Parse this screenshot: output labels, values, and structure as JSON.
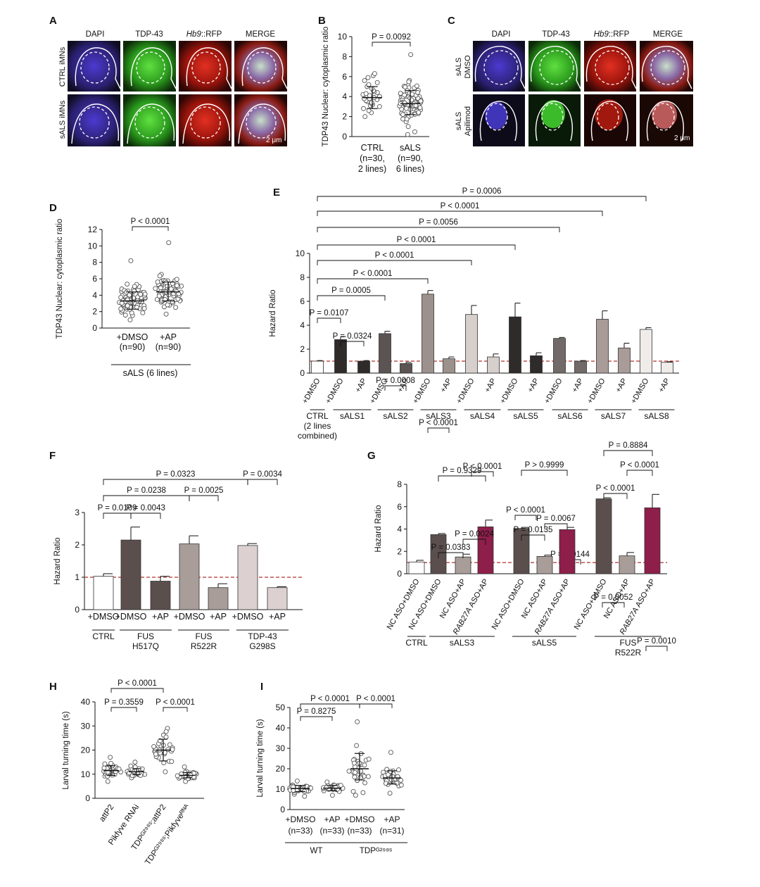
{
  "panel_A": {
    "letter": "A",
    "channels": [
      "DAPI",
      "TDP-43",
      "Hb9::RFP",
      "MERGE"
    ],
    "rows": [
      "CTRL iMNs",
      "sALS iMNs"
    ],
    "scale_bar": "2 μm"
  },
  "panel_C": {
    "letter": "C",
    "channels": [
      "DAPI",
      "TDP-43",
      "Hb9::RFP",
      "MERGE"
    ],
    "rows": [
      "sALS DMSO",
      "sALS Apilimod"
    ],
    "scale_bar": "2 μm"
  },
  "colors": {
    "dapi": "#3b2fa0",
    "tdp43": "#38b82b",
    "rfp": "#c21d14",
    "sals_bar": "#5a4e4e",
    "ap_bar": "#a79b97",
    "rab27a_bar": "#8e1e4a",
    "dashed_line": "#b2322f"
  },
  "chart_data": [
    {
      "id": "B",
      "letter": "B",
      "type": "scatter",
      "ylabel": "TDP43 Nuclear: cytoplasmic ratio",
      "ylim": [
        0,
        10
      ],
      "yticks": [
        0,
        2,
        4,
        6,
        8,
        10
      ],
      "groups": [
        {
          "label": [
            "CTRL",
            "(n=30,",
            "2 lines)"
          ],
          "n": 30,
          "mean": 3.9,
          "sd_lo": 2.8,
          "sd_hi": 5.0,
          "values": [
            2.0,
            2.4,
            2.6,
            2.8,
            3.0,
            3.1,
            3.2,
            3.3,
            3.4,
            3.5,
            3.6,
            3.7,
            3.8,
            3.8,
            3.9,
            4.0,
            4.1,
            4.2,
            4.3,
            4.4,
            4.5,
            4.6,
            4.8,
            5.0,
            5.2,
            5.4,
            5.6,
            5.9,
            6.1,
            6.3
          ]
        },
        {
          "label": [
            "sALS",
            "(n=90,",
            "6 lines)"
          ],
          "n": 90,
          "mean": 3.3,
          "sd_lo": 2.2,
          "sd_hi": 4.6,
          "values_range": [
            0.2,
            8.2
          ]
        }
      ],
      "comparisons": [
        {
          "text": "P = 0.0092",
          "from": 0,
          "to": 1
        }
      ]
    },
    {
      "id": "D",
      "letter": "D",
      "type": "scatter",
      "ylabel": "TDP43 Nuclear: cytoplasmic ratio",
      "ylim": [
        0,
        12
      ],
      "yticks": [
        0,
        2,
        4,
        6,
        8,
        10,
        12
      ],
      "groups": [
        {
          "label": [
            "+DMSO",
            "(n=90)"
          ],
          "n": 90,
          "mean": 3.3,
          "sd_lo": 2.3,
          "sd_hi": 4.4,
          "values_range": [
            1.0,
            8.2
          ]
        },
        {
          "label": [
            "+AP",
            "(n=90)"
          ],
          "n": 90,
          "mean": 4.4,
          "sd_lo": 3.3,
          "sd_hi": 5.6,
          "values_range": [
            1.7,
            10.4
          ]
        }
      ],
      "group_caption": "sALS (6 lines)",
      "comparisons": [
        {
          "text": "P < 0.0001",
          "from": 0,
          "to": 1
        }
      ]
    },
    {
      "id": "E",
      "letter": "E",
      "type": "bar",
      "ylabel": "Hazard Ratio",
      "ylim": [
        0,
        10
      ],
      "yticks": [
        0,
        2,
        4,
        6,
        8,
        10
      ],
      "reference_line": 1,
      "categories": [
        "+DMSO",
        "+DMSO",
        "+AP",
        "+DMSO",
        "+AP",
        "+DMSO",
        "+AP",
        "+DMSO",
        "+AP",
        "+DMSO",
        "+AP",
        "+DMSO",
        "+AP",
        "+DMSO",
        "+AP",
        "+DMSO",
        "+AP"
      ],
      "values": [
        1.0,
        2.8,
        1.0,
        3.3,
        0.8,
        6.6,
        1.2,
        4.9,
        1.35,
        4.7,
        1.45,
        2.9,
        1.0,
        4.5,
        2.1,
        3.65,
        0.9
      ],
      "errors": [
        0.05,
        0.25,
        0.05,
        0.2,
        0.1,
        0.3,
        0.15,
        0.75,
        0.25,
        1.15,
        0.25,
        0.08,
        0.05,
        0.7,
        0.4,
        0.15,
        0.05
      ],
      "bar_colors": [
        "#ffffff",
        "#2e2b2a",
        "#2e2b2a",
        "#5b5453",
        "#5b5453",
        "#9c918c",
        "#9c918c",
        "#d6cfcc",
        "#d6cfcc",
        "#2e2b2a",
        "#2e2b2a",
        "#726a68",
        "#726a68",
        "#a89b98",
        "#a89b98",
        "#efecea",
        "#efecea"
      ],
      "groups": [
        {
          "label": [
            "CTRL",
            "(2 lines",
            "combined)"
          ],
          "bars": [
            0,
            0
          ]
        },
        {
          "label": [
            "sALS1"
          ],
          "bars": [
            1,
            2
          ]
        },
        {
          "label": [
            "sALS2"
          ],
          "bars": [
            3,
            4
          ]
        },
        {
          "label": [
            "sALS3"
          ],
          "bars": [
            5,
            6
          ]
        },
        {
          "label": [
            "sALS4"
          ],
          "bars": [
            7,
            8
          ]
        },
        {
          "label": [
            "sALS5"
          ],
          "bars": [
            9,
            10
          ]
        },
        {
          "label": [
            "sALS6"
          ],
          "bars": [
            11,
            12
          ]
        },
        {
          "label": [
            "sALS7"
          ],
          "bars": [
            13,
            14
          ]
        },
        {
          "label": [
            "sALS8"
          ],
          "bars": [
            15,
            16
          ]
        }
      ],
      "comparisons": [
        {
          "text": "P = 0.0107",
          "from": 0,
          "to": 1
        },
        {
          "text": "P = 0.0324",
          "from": 1,
          "to": 2
        },
        {
          "text": "P = 0.0005",
          "from": 0,
          "to": 3
        },
        {
          "text": "P = 0.0008",
          "from": 3,
          "to": 4
        },
        {
          "text": "P < 0.0001",
          "from": 0,
          "to": 5
        },
        {
          "text": "P < 0.0001",
          "from": 5,
          "to": 6
        },
        {
          "text": "P < 0.0001",
          "from": 0,
          "to": 7
        },
        {
          "text": "P < 0.0001",
          "from": 7,
          "to": 8
        },
        {
          "text": "P < 0.0001",
          "from": 0,
          "to": 9
        },
        {
          "text": "P < 0.0001",
          "from": 9,
          "to": 10
        },
        {
          "text": "P = 0.0056",
          "from": 0,
          "to": 11
        },
        {
          "text": "P = 0.0144",
          "from": 11,
          "to": 12
        },
        {
          "text": "P < 0.0001",
          "from": 0,
          "to": 13
        },
        {
          "text": "P = 0.0052",
          "from": 13,
          "to": 14
        },
        {
          "text": "P = 0.0006",
          "from": 0,
          "to": 15
        },
        {
          "text": "P = 0.0010",
          "from": 15,
          "to": 16
        }
      ]
    },
    {
      "id": "F",
      "letter": "F",
      "type": "bar",
      "ylabel": "Hazard Ratio",
      "ylim": [
        0,
        3
      ],
      "yticks": [
        0,
        1,
        2,
        3
      ],
      "reference_line": 1,
      "categories": [
        "+DMSO",
        "+DMSO",
        "+AP",
        "+DMSO",
        "+AP",
        "+DMSO",
        "+AP"
      ],
      "values": [
        1.03,
        2.15,
        0.88,
        2.03,
        0.68,
        1.98,
        0.68
      ],
      "errors": [
        0.08,
        0.4,
        0.15,
        0.25,
        0.12,
        0.06,
        0.03
      ],
      "bar_colors": [
        "#ffffff",
        "#5b4f4e",
        "#5b4f4e",
        "#a89d98",
        "#a89d98",
        "#dcd0d0",
        "#dcd0d0"
      ],
      "groups": [
        {
          "label": [
            "CTRL"
          ],
          "bars": [
            0,
            0
          ]
        },
        {
          "label": [
            "FUS",
            "H517Q"
          ],
          "bars": [
            1,
            2
          ]
        },
        {
          "label": [
            "FUS",
            "R522R"
          ],
          "bars": [
            3,
            4
          ]
        },
        {
          "label": [
            "TDP-43",
            "G298S"
          ],
          "bars": [
            5,
            6
          ]
        }
      ],
      "comparisons": [
        {
          "text": "P = 0.0109",
          "from": 0,
          "to": 1
        },
        {
          "text": "P = 0.0043",
          "from": 1,
          "to": 2
        },
        {
          "text": "P = 0.0238",
          "from": 0,
          "to": 3
        },
        {
          "text": "P = 0.0025",
          "from": 3,
          "to": 4
        },
        {
          "text": "P = 0.0323",
          "from": 0,
          "to": 5
        },
        {
          "text": "P = 0.0034",
          "from": 5,
          "to": 6
        }
      ]
    },
    {
      "id": "G",
      "letter": "G",
      "type": "bar",
      "ylabel": "Hazard Ratio",
      "ylim": [
        0,
        8
      ],
      "yticks": [
        0,
        2,
        4,
        6,
        8
      ],
      "reference_line": 1,
      "categories": [
        "NC ASO+DMSO",
        "NC ASO+DMSO",
        "NC ASO+AP",
        "RAB27A ASO+AP",
        "NC ASO+DMSO",
        "NC ASO+AP",
        "RAB27A ASO+AP",
        "NC ASO+DMSO",
        "NC ASO+AP",
        "RAB27A ASO+AP"
      ],
      "values": [
        1.05,
        3.5,
        1.5,
        4.2,
        4.05,
        1.55,
        3.95,
        6.7,
        1.6,
        5.9
      ],
      "errors": [
        0.15,
        0.1,
        0.25,
        0.6,
        0.1,
        0.12,
        0.2,
        0.1,
        0.3,
        1.2
      ],
      "bar_colors": [
        "#ffffff",
        "#5a4f4d",
        "#a89d98",
        "#8e1e4a",
        "#5a4f4d",
        "#a89d98",
        "#8e1e4a",
        "#5a4f4d",
        "#a89d98",
        "#8e1e4a"
      ],
      "groups": [
        {
          "label": [
            "CTRL"
          ],
          "bars": [
            0,
            0
          ]
        },
        {
          "label": [
            "sALS3"
          ],
          "bars": [
            1,
            3
          ]
        },
        {
          "label": [
            "sALS5"
          ],
          "bars": [
            4,
            6
          ]
        },
        {
          "label": [
            "FUS",
            "R522R"
          ],
          "bars": [
            7,
            9
          ]
        }
      ],
      "comparisons": [
        {
          "text": "P = 0.0383",
          "from": 1,
          "to": 2
        },
        {
          "text": "P = 0.0024",
          "from": 2,
          "to": 3
        },
        {
          "text": "P = 0.9329",
          "from": 1,
          "to": 3
        },
        {
          "text": "P = 0.0135",
          "from": 4,
          "to": 5
        },
        {
          "text": "P = 0.0067",
          "from": 5,
          "to": 6
        },
        {
          "text": "P > 0.9999",
          "from": 4,
          "to": 6
        },
        {
          "text": "P < 0.0001",
          "from": 7,
          "to": 8
        },
        {
          "text": "P < 0.0001",
          "from": 8,
          "to": 9
        },
        {
          "text": "P = 0.8884",
          "from": 7,
          "to": 9
        }
      ]
    },
    {
      "id": "H",
      "letter": "H",
      "type": "scatter",
      "ylabel": "Larval turning time (s)",
      "ylim": [
        0,
        40
      ],
      "yticks": [
        0,
        10,
        20,
        30,
        40
      ],
      "groups": [
        {
          "label": [
            "attP2"
          ],
          "mean": 11.5,
          "sd_lo": 9.5,
          "sd_hi": 13.5,
          "n": 30,
          "values_range": [
            7,
            17
          ]
        },
        {
          "label": [
            "Pikfyve RNAi"
          ],
          "mean": 11.0,
          "sd_lo": 9.8,
          "sd_hi": 12.3,
          "n": 30,
          "values_range": [
            8.5,
            15
          ]
        },
        {
          "label": [
            "TDPG298S;attP2"
          ],
          "mean": 20.0,
          "sd_lo": 15.5,
          "sd_hi": 24.5,
          "n": 30,
          "values_range": [
            11,
            29
          ]
        },
        {
          "label": [
            "TDPG298S;PikfyveRNA"
          ],
          "mean": 9.5,
          "sd_lo": 8.5,
          "sd_hi": 10.7,
          "n": 30,
          "values_range": [
            7,
            13
          ]
        }
      ],
      "comparisons": [
        {
          "text": "P = 0.3559",
          "from": 0,
          "to": 1
        },
        {
          "text": "P < 0.0001",
          "from": 0,
          "to": 2
        },
        {
          "text": "P < 0.0001",
          "from": 2,
          "to": 3
        }
      ]
    },
    {
      "id": "I",
      "letter": "I",
      "type": "scatter",
      "ylabel": "Larval turning time (s)",
      "ylim": [
        0,
        50
      ],
      "yticks": [
        0,
        10,
        20,
        30,
        40,
        50
      ],
      "groups": [
        {
          "label": [
            "+DMSO",
            "(n=33)"
          ],
          "n": 33,
          "mean": 10.3,
          "sd_lo": 8.8,
          "sd_hi": 11.8,
          "values_range": [
            6.5,
            14
          ]
        },
        {
          "label": [
            "+AP",
            "(n=33)"
          ],
          "n": 33,
          "mean": 10.5,
          "sd_lo": 9.2,
          "sd_hi": 11.8,
          "values_range": [
            7,
            13.5
          ]
        },
        {
          "label": [
            "+DMSO",
            "(n=33)"
          ],
          "n": 33,
          "mean": 20.0,
          "sd_lo": 14.5,
          "sd_hi": 27.5,
          "values_range": [
            7,
            43
          ]
        },
        {
          "label": [
            "+AP",
            "(n=31)"
          ],
          "n": 31,
          "mean": 15.5,
          "sd_lo": 12.5,
          "sd_hi": 19.0,
          "values_range": [
            8,
            28
          ]
        }
      ],
      "group_captions": [
        {
          "text": "WT",
          "from": 0,
          "to": 1
        },
        {
          "text": "TDPG298S",
          "from": 2,
          "to": 3
        }
      ],
      "comparisons": [
        {
          "text": "P = 0.8275",
          "from": 0,
          "to": 1
        },
        {
          "text": "P < 0.0001",
          "from": 0,
          "to": 2
        },
        {
          "text": "P < 0.0001",
          "from": 2,
          "to": 3
        }
      ]
    }
  ]
}
